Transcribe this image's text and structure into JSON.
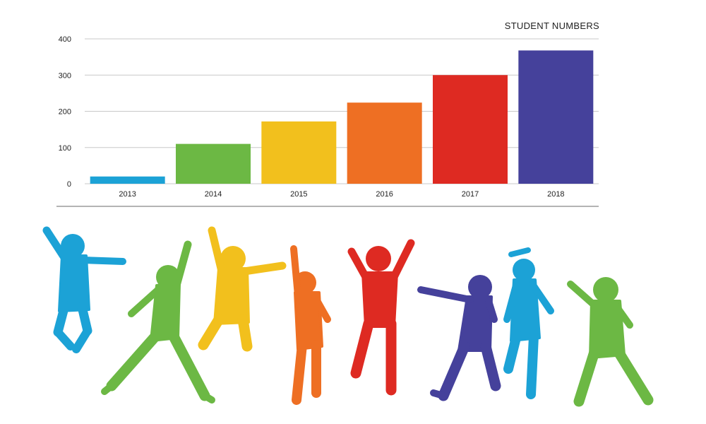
{
  "chart_data": {
    "type": "bar",
    "title": "STUDENT NUMBERS",
    "categories": [
      "2013",
      "2014",
      "2015",
      "2016",
      "2017",
      "2018"
    ],
    "values": [
      20,
      110,
      172,
      224,
      300,
      368
    ],
    "ylim": [
      0,
      400
    ],
    "yticks": [
      0,
      100,
      200,
      300,
      400
    ],
    "grid": true,
    "bar_colors": [
      "#1ca2d6",
      "#6cb844",
      "#f2c01d",
      "#ee6f23",
      "#de2a22",
      "#45419b"
    ]
  },
  "illustration": {
    "colors": [
      "#1ca2d6",
      "#6cb844",
      "#f2c01d",
      "#ee6f23",
      "#de2a22",
      "#45419b",
      "#1ca2d6",
      "#6cb844"
    ],
    "icons": [
      "jumping-child-silhouette"
    ]
  }
}
